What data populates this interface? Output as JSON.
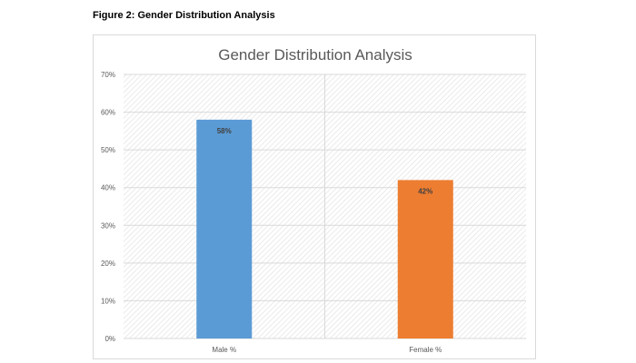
{
  "figure_caption": "Figure 2: Gender Distribution Analysis",
  "chart_data": {
    "type": "bar",
    "title": "Gender Distribution Analysis",
    "categories": [
      "Male %",
      "Female %"
    ],
    "values": [
      58,
      42
    ],
    "data_labels": [
      "58%",
      "42%"
    ],
    "colors": [
      "#5b9bd5",
      "#ed7d31"
    ],
    "ylim": [
      0,
      70
    ],
    "yticks": [
      "0%",
      "10%",
      "20%",
      "30%",
      "40%",
      "50%",
      "60%",
      "70%"
    ],
    "xlabel": "",
    "ylabel": "",
    "grid": true,
    "legend": "none"
  }
}
